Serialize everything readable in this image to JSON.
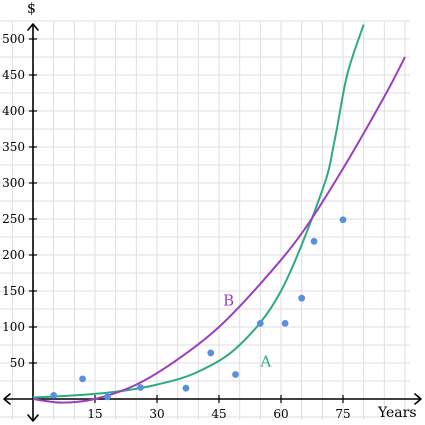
{
  "chart_data": {
    "type": "scatter",
    "title": "",
    "xlabel": "Years",
    "ylabel": "$",
    "xlim": [
      -7,
      95
    ],
    "ylim": [
      -35,
      520
    ],
    "x_ticks": [
      15,
      30,
      45,
      60,
      75
    ],
    "y_ticks": [
      50,
      100,
      150,
      200,
      250,
      300,
      350,
      400,
      450,
      500
    ],
    "grid": true,
    "points": [
      {
        "x": 5,
        "y": 5
      },
      {
        "x": 12,
        "y": 28
      },
      {
        "x": 18,
        "y": 3
      },
      {
        "x": 26,
        "y": 16
      },
      {
        "x": 37,
        "y": 15
      },
      {
        "x": 43,
        "y": 64
      },
      {
        "x": 49,
        "y": 34
      },
      {
        "x": 55,
        "y": 105
      },
      {
        "x": 61,
        "y": 105
      },
      {
        "x": 65,
        "y": 140
      },
      {
        "x": 68,
        "y": 219
      },
      {
        "x": 75,
        "y": 249
      }
    ],
    "series": [
      {
        "name": "A",
        "type": "exponential",
        "color": "#2eaa82",
        "label_at": [
          55,
          45
        ],
        "points": [
          [
            0,
            2
          ],
          [
            10,
            5
          ],
          [
            20,
            10
          ],
          [
            30,
            20
          ],
          [
            40,
            38
          ],
          [
            50,
            75
          ],
          [
            60,
            150
          ],
          [
            70,
            290
          ],
          [
            73,
            360
          ],
          [
            76,
            450
          ],
          [
            80,
            520
          ]
        ]
      },
      {
        "name": "B",
        "type": "polynomial",
        "color": "#9a3fbf",
        "label_at": [
          46,
          130
        ],
        "points": [
          [
            0,
            0
          ],
          [
            7,
            -5
          ],
          [
            15,
            0
          ],
          [
            25,
            20
          ],
          [
            35,
            55
          ],
          [
            45,
            100
          ],
          [
            55,
            160
          ],
          [
            65,
            230
          ],
          [
            75,
            320
          ],
          [
            85,
            420
          ],
          [
            90,
            475
          ]
        ]
      }
    ],
    "point_color": "#5a8fe0"
  }
}
